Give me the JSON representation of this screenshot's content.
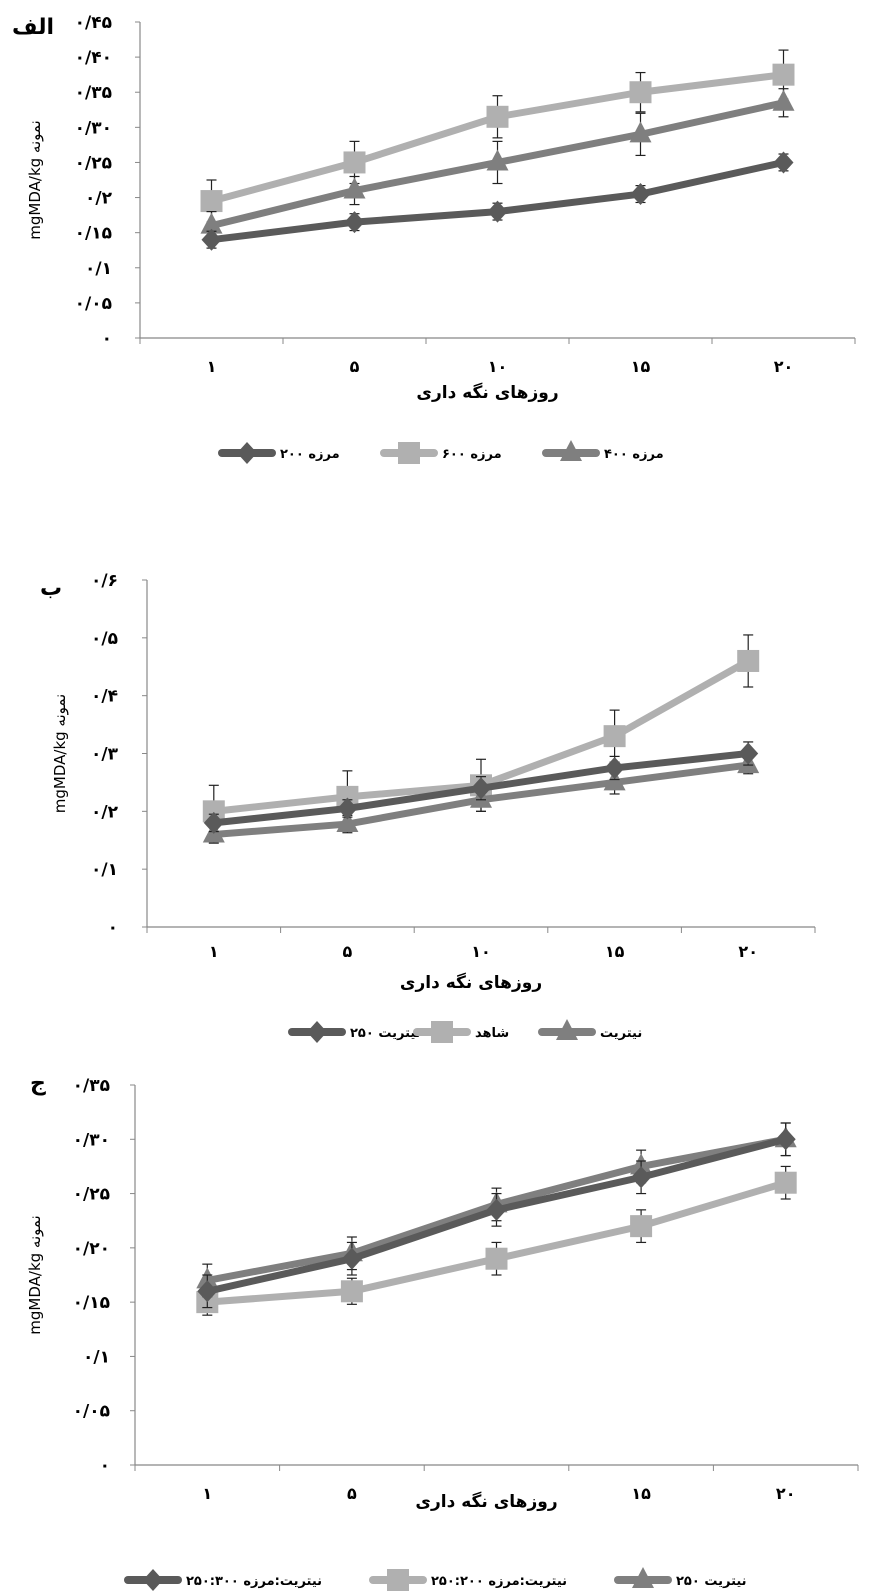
{
  "chart_data": [
    {
      "type": "line",
      "panel_label": "الف",
      "xlabel": "روزهای نگه داری",
      "ylabel": "mgMDA/kg نمونه",
      "categories": [
        "۱",
        "۵",
        "۱۰",
        "۱۵",
        "۲۰"
      ],
      "x": [
        1,
        5,
        10,
        15,
        20
      ],
      "ylim": [
        0,
        0.45
      ],
      "yticks": [
        0,
        0.05,
        0.1,
        0.15,
        0.2,
        0.25,
        0.3,
        0.35,
        0.4,
        0.45
      ],
      "ytick_labels": [
        "۰",
        "۰/۰۵",
        "۰/۱",
        "۰/۱۵",
        "۰/۲",
        "۰/۲۵",
        "۰/۳۰",
        "۰/۳۵",
        "۰/۴۰",
        "۰/۴۵"
      ],
      "legend_position": "bottom",
      "series": [
        {
          "name": "مرزه ۲۰۰",
          "marker": "diamond",
          "color": "#5a5a5a",
          "values": [
            0.14,
            0.165,
            0.18,
            0.205,
            0.25
          ],
          "errors": [
            0.012,
            0.012,
            0.012,
            0.012,
            0.012
          ]
        },
        {
          "name": "مرزه ۶۰۰",
          "marker": "square",
          "color": "#b0b0b0",
          "values": [
            0.195,
            0.25,
            0.315,
            0.35,
            0.375
          ],
          "errors": [
            0.03,
            0.03,
            0.03,
            0.028,
            0.035
          ]
        },
        {
          "name": "مرزه ۴۰۰",
          "marker": "triangle",
          "color": "#7f7f7f",
          "values": [
            0.16,
            0.21,
            0.25,
            0.29,
            0.335
          ],
          "errors": [
            0.02,
            0.02,
            0.03,
            0.03,
            0.02
          ]
        }
      ]
    },
    {
      "type": "line",
      "panel_label": "ب",
      "xlabel": "روزهای نگه داری",
      "ylabel": "mgMDA/kg نمونه",
      "categories": [
        "۱",
        "۵",
        "۱۰",
        "۱۵",
        "۲۰"
      ],
      "x": [
        1,
        5,
        10,
        15,
        20
      ],
      "ylim": [
        0,
        0.6
      ],
      "yticks": [
        0,
        0.1,
        0.2,
        0.3,
        0.4,
        0.5,
        0.6
      ],
      "ytick_labels": [
        "۰",
        "۰/۱",
        "۰/۲",
        "۰/۳",
        "۰/۴",
        "۰/۵",
        "۰/۶"
      ],
      "legend_position": "bottom",
      "series": [
        {
          "name": "نیتریت ۲۵۰",
          "marker": "diamond",
          "color": "#5a5a5a",
          "values": [
            0.18,
            0.205,
            0.24,
            0.275,
            0.3
          ],
          "errors": [
            0.015,
            0.015,
            0.02,
            0.02,
            0.02
          ]
        },
        {
          "name": "شاهد",
          "marker": "square",
          "color": "#b0b0b0",
          "values": [
            0.2,
            0.225,
            0.245,
            0.33,
            0.46
          ],
          "errors": [
            0.045,
            0.045,
            0.045,
            0.045,
            0.045
          ]
        },
        {
          "name": "نیتریت",
          "marker": "triangle",
          "color": "#7f7f7f",
          "values": [
            0.16,
            0.178,
            0.22,
            0.25,
            0.28
          ],
          "errors": [
            0.015,
            0.015,
            0.02,
            0.02,
            0.015
          ]
        }
      ]
    },
    {
      "type": "line",
      "panel_label": "ج",
      "xlabel": "روزهای نگه داری",
      "ylabel": "mgMDA/kg نمونه",
      "categories": [
        "۱",
        "۵",
        "",
        "۱۵",
        "۲۰"
      ],
      "x": [
        1,
        5,
        10,
        15,
        20
      ],
      "ylim": [
        0,
        0.35
      ],
      "yticks": [
        0,
        0.05,
        0.1,
        0.15,
        0.2,
        0.25,
        0.3,
        0.35
      ],
      "ytick_labels": [
        "۰",
        "۰/۰۵",
        "۰/۱",
        "۰/۱۵",
        "۰/۲۰",
        "۰/۲۵",
        "۰/۳۰",
        "۰/۳۵"
      ],
      "legend_position": "bottom",
      "series": [
        {
          "name": "نیتریت:مرزه ۲۵۰:۳۰۰",
          "marker": "diamond",
          "color": "#5a5a5a",
          "values": [
            0.16,
            0.19,
            0.235,
            0.265,
            0.3
          ],
          "errors": [
            0.015,
            0.015,
            0.015,
            0.015,
            0.015
          ]
        },
        {
          "name": "نیتریت:مرزه ۲۵۰:۲۰۰",
          "marker": "square",
          "color": "#b0b0b0",
          "values": [
            0.15,
            0.16,
            0.19,
            0.22,
            0.26
          ],
          "errors": [
            0.012,
            0.012,
            0.015,
            0.015,
            0.015
          ]
        },
        {
          "name": "نیتریت ۲۵۰",
          "marker": "triangle",
          "color": "#7f7f7f",
          "values": [
            0.17,
            0.195,
            0.24,
            0.275,
            0.3
          ],
          "errors": [
            0.015,
            0.015,
            0.015,
            0.015,
            0.015
          ]
        }
      ]
    }
  ]
}
